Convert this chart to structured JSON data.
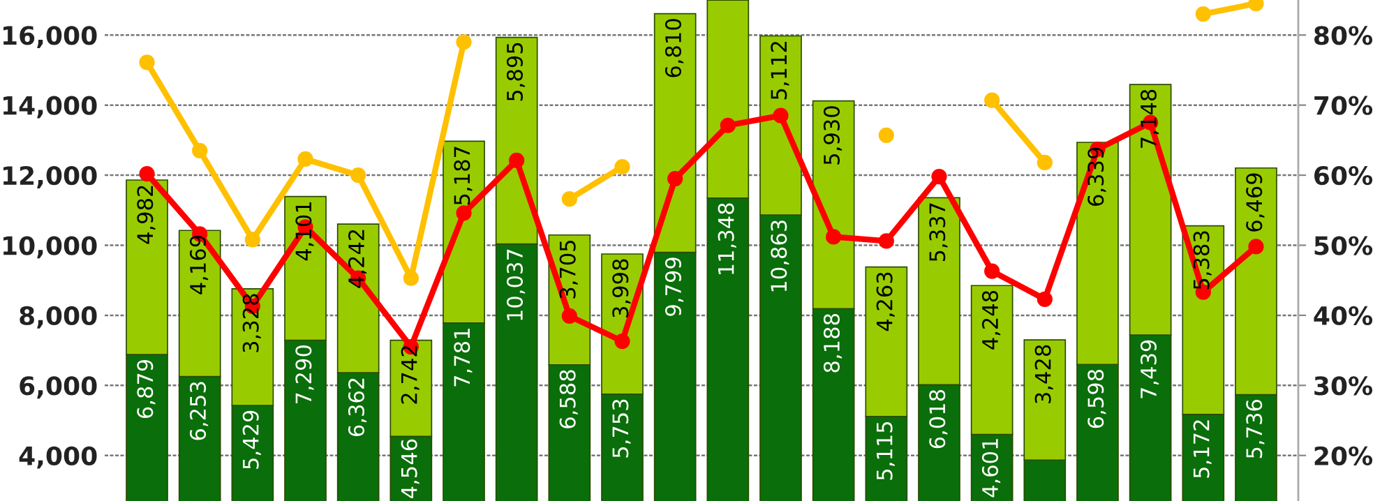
{
  "chart_data": {
    "type": "bar",
    "stacked": true,
    "grid": "y",
    "legend": false,
    "marker": "circle",
    "tick_labels": "y",
    "categories": [
      null,
      null,
      null,
      null,
      null,
      null,
      null,
      null,
      null,
      null,
      null,
      null,
      null,
      null,
      null,
      null,
      null,
      null,
      null,
      null,
      null,
      null
    ],
    "series": [
      {
        "color": "#0a6e0a",
        "values": [
          6879,
          6253,
          5429,
          7290,
          6362,
          4546,
          7781,
          10037,
          6588,
          5753,
          9799,
          11348,
          10863,
          8188,
          5115,
          6018,
          4601,
          3870,
          6598,
          7439,
          5172,
          5736
        ],
        "value_labels": [
          "6,879",
          "6,253",
          "5,429",
          "7,290",
          "6,362",
          "4,546",
          "7,781",
          "10,037",
          "6,588",
          "5,753",
          "9,799",
          "11,348",
          "10,863",
          "8,188",
          "5,115",
          "6,018",
          "4,601",
          null,
          "6,598",
          "7,439",
          "5,172",
          "5,736"
        ]
      },
      {
        "color": "#99cc00",
        "values": [
          4982,
          4169,
          3328,
          4101,
          4242,
          2742,
          5187,
          5895,
          3705,
          3998,
          6810,
          5650,
          5112,
          5930,
          4263,
          5337,
          4248,
          3428,
          6339,
          7148,
          5383,
          6469
        ],
        "value_labels": [
          "4,982",
          "4,169",
          "3,328",
          "4,101",
          "4,242",
          "2,742",
          "5,187",
          "5,895",
          "3,705",
          "3,998",
          "6,810",
          null,
          "5,112",
          "5,930",
          "4,263",
          "5,337",
          "4,248",
          "3,428",
          "6,339",
          "7,148",
          "5,383",
          "6,469"
        ]
      },
      {
        "type": "line",
        "axis": "y2",
        "color": "#ffc000",
        "values": [
          76.1,
          63.5,
          50.8,
          62.3,
          60.0,
          45.3,
          79.0,
          null,
          56.6,
          61.2,
          null,
          null,
          null,
          null,
          65.7,
          null,
          70.7,
          61.8,
          null,
          null,
          83.0,
          84.5
        ]
      },
      {
        "type": "line",
        "axis": "y2",
        "color": "#ff0000",
        "values": [
          60.2,
          51.6,
          41.3,
          52.6,
          45.3,
          35.5,
          54.6,
          62.1,
          39.9,
          36.3,
          59.5,
          67.1,
          68.5,
          51.2,
          50.6,
          59.8,
          46.3,
          42.3,
          63.7,
          67.5,
          43.3,
          49.8
        ]
      }
    ],
    "ylim": [
      2700,
      17000
    ],
    "yticks": [
      {
        "value": 4000,
        "label": "4,000"
      },
      {
        "value": 6000,
        "label": "6,000"
      },
      {
        "value": 8000,
        "label": "8,000"
      },
      {
        "value": 10000,
        "label": "10,000"
      },
      {
        "value": 12000,
        "label": "12,000"
      },
      {
        "value": 14000,
        "label": "14,000"
      },
      {
        "value": 16000,
        "label": "16,000"
      }
    ],
    "y2lim": [
      13.5,
      85
    ],
    "y2ticks": [
      {
        "value": 20,
        "label": "20%"
      },
      {
        "value": 30,
        "label": "30%"
      },
      {
        "value": 40,
        "label": "40%"
      },
      {
        "value": 50,
        "label": "50%"
      },
      {
        "value": 60,
        "label": "60%"
      },
      {
        "value": 70,
        "label": "70%"
      },
      {
        "value": 80,
        "label": "80%"
      }
    ]
  }
}
